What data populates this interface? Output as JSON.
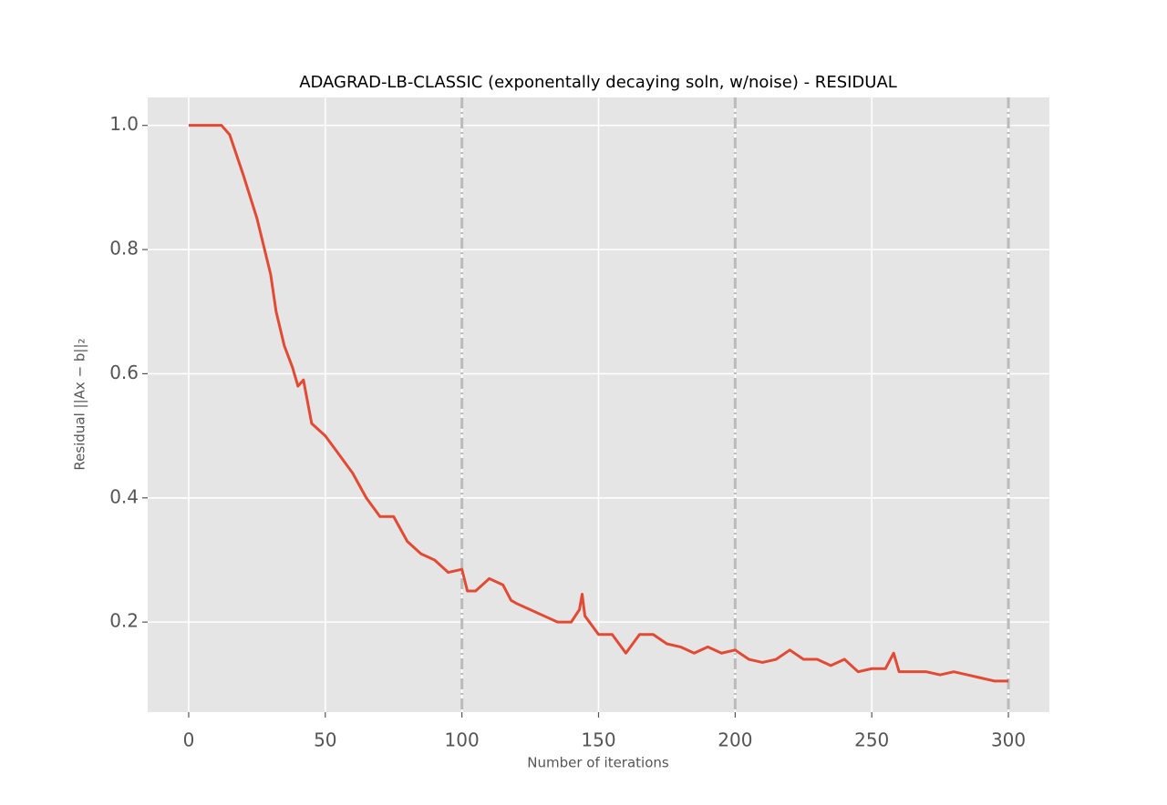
{
  "chart_data": {
    "type": "line",
    "title": "ADAGRAD-LB-CLASSIC (exponentally decaying soln, w/noise) - RESIDUAL",
    "xlabel": "Number of iterations",
    "ylabel": "Residual ||Ax − b||₂",
    "x": [
      0,
      5,
      10,
      12,
      15,
      20,
      25,
      30,
      32,
      35,
      38,
      40,
      42,
      45,
      50,
      55,
      60,
      65,
      70,
      75,
      80,
      85,
      90,
      95,
      100,
      102,
      105,
      110,
      115,
      118,
      120,
      125,
      130,
      135,
      140,
      143,
      144,
      145,
      150,
      155,
      160,
      165,
      170,
      175,
      180,
      185,
      190,
      195,
      200,
      205,
      210,
      215,
      220,
      225,
      230,
      235,
      240,
      245,
      250,
      255,
      258,
      260,
      265,
      270,
      275,
      280,
      285,
      290,
      295,
      300
    ],
    "series": [
      {
        "name": "residual",
        "color": "#E24A33",
        "values": [
          1.0,
          1.0,
          1.0,
          1.0,
          0.985,
          0.92,
          0.85,
          0.76,
          0.7,
          0.645,
          0.61,
          0.58,
          0.59,
          0.52,
          0.5,
          0.47,
          0.44,
          0.4,
          0.37,
          0.37,
          0.33,
          0.31,
          0.3,
          0.28,
          0.285,
          0.25,
          0.25,
          0.27,
          0.26,
          0.235,
          0.23,
          0.22,
          0.21,
          0.2,
          0.2,
          0.22,
          0.245,
          0.21,
          0.18,
          0.18,
          0.15,
          0.18,
          0.18,
          0.165,
          0.16,
          0.15,
          0.16,
          0.15,
          0.155,
          0.14,
          0.135,
          0.14,
          0.155,
          0.14,
          0.14,
          0.13,
          0.14,
          0.12,
          0.125,
          0.125,
          0.15,
          0.12,
          0.12,
          0.12,
          0.115,
          0.12,
          0.115,
          0.11,
          0.105,
          0.105
        ]
      }
    ],
    "xlim": [
      -15,
      315
    ],
    "ylim": [
      0.055,
      1.045
    ],
    "xticks": [
      0,
      50,
      100,
      150,
      200,
      250,
      300
    ],
    "yticks": [
      0.2,
      0.4,
      0.6,
      0.8,
      {
        "value": 1,
        "label": "1.0"
      }
    ],
    "vlines": [
      100,
      200,
      300
    ],
    "grid": true
  }
}
